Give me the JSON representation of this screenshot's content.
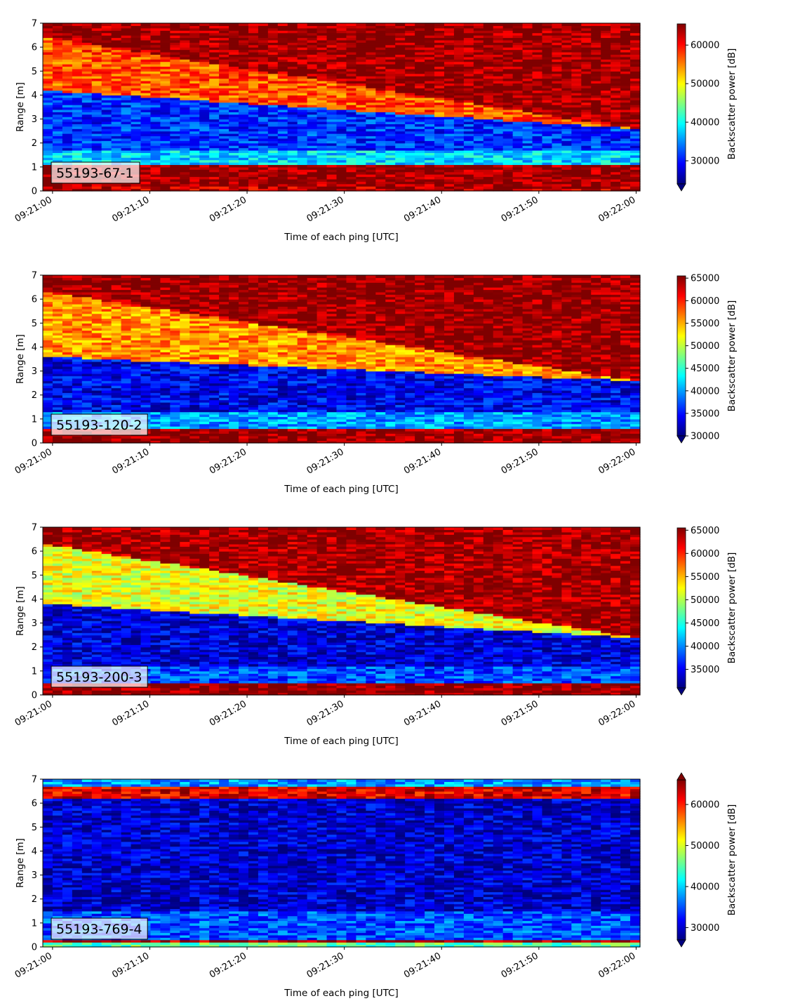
{
  "figure": {
    "colormap": [
      "#00007f",
      "#0000ff",
      "#007fff",
      "#00ffff",
      "#7fff7f",
      "#ffff00",
      "#ff7f00",
      "#ff0000",
      "#7f0000"
    ]
  },
  "chart_data": [
    {
      "type": "heatmap",
      "label": "55193-67-1",
      "xlabel": "Time of each ping [UTC]",
      "ylabel": "Range [m]",
      "colorbar_label": "Backscatter power [dB]",
      "x_tick_labels": [
        "09:21:00",
        "09:21:10",
        "09:21:20",
        "09:21:30",
        "09:21:40",
        "09:21:50",
        "09:22:00"
      ],
      "x_tick_seconds": [
        0,
        10,
        20,
        30,
        40,
        50,
        60
      ],
      "xlim_seconds": [
        -1,
        60.4
      ],
      "ylim": [
        0,
        7
      ],
      "y_ticks": [
        0,
        1,
        2,
        3,
        4,
        5,
        6,
        7
      ],
      "colorbar_ticks": [
        30000,
        40000,
        50000,
        60000
      ],
      "clim": [
        24000,
        65500
      ],
      "colorbar_extend": "min",
      "layers": [
        {
          "from": 0.0,
          "to": 0.25,
          "value": 63000
        },
        {
          "from": 0.25,
          "to": 1.15,
          "value": 64500
        },
        {
          "from": 1.15,
          "to": 1.7,
          "value": 38000
        },
        {
          "from": 1.7,
          "to": 4.2,
          "value": 31000,
          "top_end": 2.6
        },
        {
          "from": 4.2,
          "to": 6.4,
          "value": 57000,
          "top_end": 2.6
        },
        {
          "from": 6.4,
          "to": 7.0,
          "value": 64500
        }
      ]
    },
    {
      "type": "heatmap",
      "label": "55193-120-2",
      "xlabel": "Time of each ping [UTC]",
      "ylabel": "Range [m]",
      "colorbar_label": "Backscatter power [dB]",
      "x_tick_labels": [
        "09:21:00",
        "09:21:10",
        "09:21:20",
        "09:21:30",
        "09:21:40",
        "09:21:50",
        "09:22:00"
      ],
      "x_tick_seconds": [
        0,
        10,
        20,
        30,
        40,
        50,
        60
      ],
      "xlim_seconds": [
        -1,
        60.4
      ],
      "ylim": [
        0,
        7
      ],
      "y_ticks": [
        0,
        1,
        2,
        3,
        4,
        5,
        6,
        7
      ],
      "colorbar_ticks": [
        30000,
        35000,
        40000,
        45000,
        50000,
        55000,
        60000,
        65000
      ],
      "clim": [
        30000,
        65500
      ],
      "colorbar_extend": "min",
      "layers": [
        {
          "from": 0.0,
          "to": 0.6,
          "value": 65000
        },
        {
          "from": 0.6,
          "to": 1.3,
          "value": 40000
        },
        {
          "from": 1.3,
          "to": 3.6,
          "value": 34000,
          "top_end": 2.6
        },
        {
          "from": 3.6,
          "to": 6.3,
          "value": 56000,
          "top_end": 2.6
        },
        {
          "from": 6.3,
          "to": 7.0,
          "value": 65000
        }
      ]
    },
    {
      "type": "heatmap",
      "label": "55193-200-3",
      "xlabel": "Time of each ping [UTC]",
      "ylabel": "Range [m]",
      "colorbar_label": "Backscatter power [dB]",
      "x_tick_labels": [
        "09:21:00",
        "09:21:10",
        "09:21:20",
        "09:21:30",
        "09:21:40",
        "09:21:50",
        "09:22:00"
      ],
      "x_tick_seconds": [
        0,
        10,
        20,
        30,
        40,
        50,
        60
      ],
      "xlim_seconds": [
        -1,
        60.4
      ],
      "ylim": [
        0,
        7
      ],
      "y_ticks": [
        0,
        1,
        2,
        3,
        4,
        5,
        6,
        7
      ],
      "colorbar_ticks": [
        35000,
        40000,
        45000,
        50000,
        55000,
        60000,
        65000
      ],
      "clim": [
        31000,
        65500
      ],
      "colorbar_extend": "min",
      "layers": [
        {
          "from": 0.0,
          "to": 0.45,
          "value": 65000
        },
        {
          "from": 0.45,
          "to": 1.2,
          "value": 38000
        },
        {
          "from": 1.2,
          "to": 3.8,
          "value": 34000,
          "top_end": 2.4
        },
        {
          "from": 3.8,
          "to": 6.3,
          "value": 52000,
          "top_end": 2.4
        },
        {
          "from": 6.3,
          "to": 7.0,
          "value": 64500
        }
      ]
    },
    {
      "type": "heatmap",
      "label": "55193-769-4",
      "xlabel": "Time of each ping [UTC]",
      "ylabel": "Range [m]",
      "colorbar_label": "Backscatter power [dB]",
      "x_tick_labels": [
        "09:21:00",
        "09:21:10",
        "09:21:20",
        "09:21:30",
        "09:21:40",
        "09:21:50",
        "09:22:00"
      ],
      "x_tick_seconds": [
        0,
        10,
        20,
        30,
        40,
        50,
        60
      ],
      "xlim_seconds": [
        -1,
        60.4
      ],
      "ylim": [
        0,
        7
      ],
      "y_ticks": [
        0,
        1,
        2,
        3,
        4,
        5,
        6,
        7
      ],
      "colorbar_ticks": [
        30000,
        40000,
        50000,
        60000
      ],
      "clim": [
        27000,
        66000
      ],
      "colorbar_extend": "both",
      "layers": [
        {
          "from": 0.0,
          "to": 0.2,
          "value": 45000
        },
        {
          "from": 0.2,
          "to": 0.35,
          "value": 64000
        },
        {
          "from": 0.35,
          "to": 1.5,
          "value": 35000
        },
        {
          "from": 1.5,
          "to": 6.2,
          "value": 30000
        },
        {
          "from": 6.2,
          "to": 6.7,
          "value": 62000
        },
        {
          "from": 6.7,
          "to": 7.0,
          "value": 38000
        }
      ]
    }
  ]
}
